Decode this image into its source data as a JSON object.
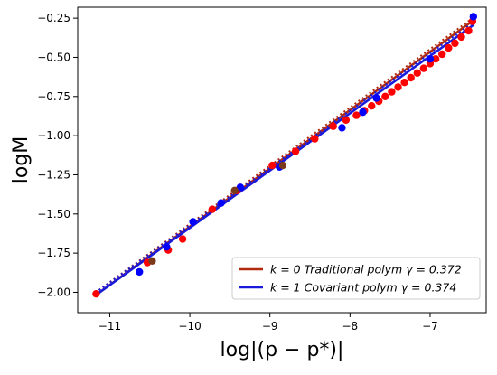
{
  "chart_data": {
    "type": "scatter",
    "title": "",
    "xlabel": "log|(p − p*)|",
    "ylabel": "logM",
    "xlim": [
      -11.4,
      -6.3
    ],
    "ylim": [
      -2.13,
      -0.18
    ],
    "xticks": [
      -11,
      -10,
      -9,
      -8,
      -7
    ],
    "xtick_labels": [
      "−11",
      "−10",
      "−9",
      "−8",
      "−7"
    ],
    "yticks": [
      -2.0,
      -1.75,
      -1.5,
      -1.25,
      -1.0,
      -0.75,
      -0.5,
      -0.25
    ],
    "ytick_labels": [
      "−2.00",
      "−1.75",
      "−1.50",
      "−1.25",
      "−1.00",
      "−0.75",
      "−0.50",
      "−0.25"
    ],
    "grid": false,
    "legend_position": "bottom-right",
    "series": [
      {
        "name": "k = 0 Traditional polym γ = 0.372",
        "legend_label": "k = 0 Traditional polym γ = 0.372",
        "color": "#ff0000",
        "fit_color": "#b22a0e",
        "fit_style": "dotted",
        "fit_x": [
          -11.18,
          -6.45
        ],
        "fit_y": [
          -2.02,
          -0.26
        ],
        "points": [
          [
            -11.17,
            -2.01
          ],
          [
            -10.53,
            -1.81
          ],
          [
            -10.27,
            -1.73
          ],
          [
            -10.09,
            -1.66
          ],
          [
            -9.72,
            -1.47
          ],
          [
            -9.41,
            -1.35
          ],
          [
            -8.97,
            -1.19
          ],
          [
            -8.68,
            -1.1
          ],
          [
            -8.44,
            -1.02
          ],
          [
            -8.21,
            -0.94
          ],
          [
            -8.05,
            -0.9
          ],
          [
            -7.92,
            -0.87
          ],
          [
            -7.82,
            -0.84
          ],
          [
            -7.73,
            -0.81
          ],
          [
            -7.64,
            -0.78
          ],
          [
            -7.56,
            -0.75
          ],
          [
            -7.48,
            -0.72
          ],
          [
            -7.4,
            -0.69
          ],
          [
            -7.32,
            -0.66
          ],
          [
            -7.24,
            -0.63
          ],
          [
            -7.16,
            -0.6
          ],
          [
            -7.08,
            -0.57
          ],
          [
            -7.0,
            -0.54
          ],
          [
            -6.93,
            -0.51
          ],
          [
            -6.85,
            -0.48
          ],
          [
            -6.77,
            -0.44
          ],
          [
            -6.69,
            -0.41
          ],
          [
            -6.61,
            -0.37
          ],
          [
            -6.52,
            -0.33
          ],
          [
            -6.47,
            -0.27
          ]
        ]
      },
      {
        "name": "k = 1 Covariant polym γ = 0.374",
        "legend_label": "k = 1 Covariant polym γ = 0.374",
        "color": "#0000ff",
        "fit_color": "#1a1adb",
        "fit_style": "dotted",
        "fit_x": [
          -11.18,
          -6.45
        ],
        "fit_y": [
          -2.02,
          -0.29
        ],
        "points": [
          [
            -10.63,
            -1.87
          ],
          [
            -10.29,
            -1.71
          ],
          [
            -9.96,
            -1.55
          ],
          [
            -9.61,
            -1.43
          ],
          [
            -9.37,
            -1.33
          ],
          [
            -8.88,
            -1.2
          ],
          [
            -8.1,
            -0.95
          ],
          [
            -7.84,
            -0.85
          ],
          [
            -7.67,
            -0.76
          ],
          [
            -7.0,
            -0.51
          ],
          [
            -6.46,
            -0.24
          ]
        ]
      }
    ],
    "overlap_points": [
      [
        -10.47,
        -1.8
      ],
      [
        -9.44,
        -1.35
      ],
      [
        -8.84,
        -1.19
      ]
    ],
    "overlap_color": "#7a3a1a"
  }
}
